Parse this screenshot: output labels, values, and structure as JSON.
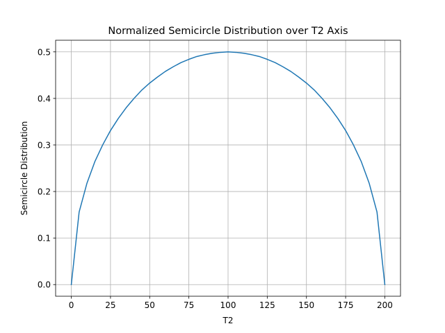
{
  "chart_data": {
    "type": "line",
    "title": "Normalized Semicircle Distribution over T2 Axis",
    "xlabel": "T2",
    "ylabel": "Semicircle Distribution",
    "xlim": [
      -10,
      210
    ],
    "ylim": [
      -0.025,
      0.525
    ],
    "x_ticks": [
      0,
      25,
      50,
      75,
      100,
      125,
      150,
      175,
      200
    ],
    "y_ticks": [
      0.0,
      0.1,
      0.2,
      0.3,
      0.4,
      0.5
    ],
    "x_tick_labels": [
      "0",
      "25",
      "50",
      "75",
      "100",
      "125",
      "150",
      "175",
      "200"
    ],
    "y_tick_labels": [
      "0.0",
      "0.1",
      "0.2",
      "0.3",
      "0.4",
      "0.5"
    ],
    "grid": true,
    "series": [
      {
        "color": "#1f77b4",
        "x": [
          0,
          5,
          10,
          15,
          20,
          25,
          30,
          35,
          40,
          45,
          50,
          55,
          60,
          65,
          70,
          75,
          80,
          85,
          90,
          95,
          100,
          105,
          110,
          115,
          120,
          125,
          130,
          135,
          140,
          145,
          150,
          155,
          160,
          165,
          170,
          175,
          180,
          185,
          190,
          195,
          200
        ],
        "y": [
          0.0,
          0.156,
          0.218,
          0.264,
          0.3,
          0.331,
          0.357,
          0.38,
          0.4,
          0.418,
          0.433,
          0.446,
          0.458,
          0.468,
          0.477,
          0.484,
          0.49,
          0.494,
          0.497,
          0.499,
          0.5,
          0.499,
          0.497,
          0.494,
          0.49,
          0.484,
          0.477,
          0.468,
          0.458,
          0.446,
          0.433,
          0.418,
          0.4,
          0.38,
          0.357,
          0.331,
          0.3,
          0.264,
          0.218,
          0.156,
          0.0
        ]
      }
    ]
  },
  "colors": {
    "grid": "#b0b0b0",
    "axes": "#000000"
  }
}
